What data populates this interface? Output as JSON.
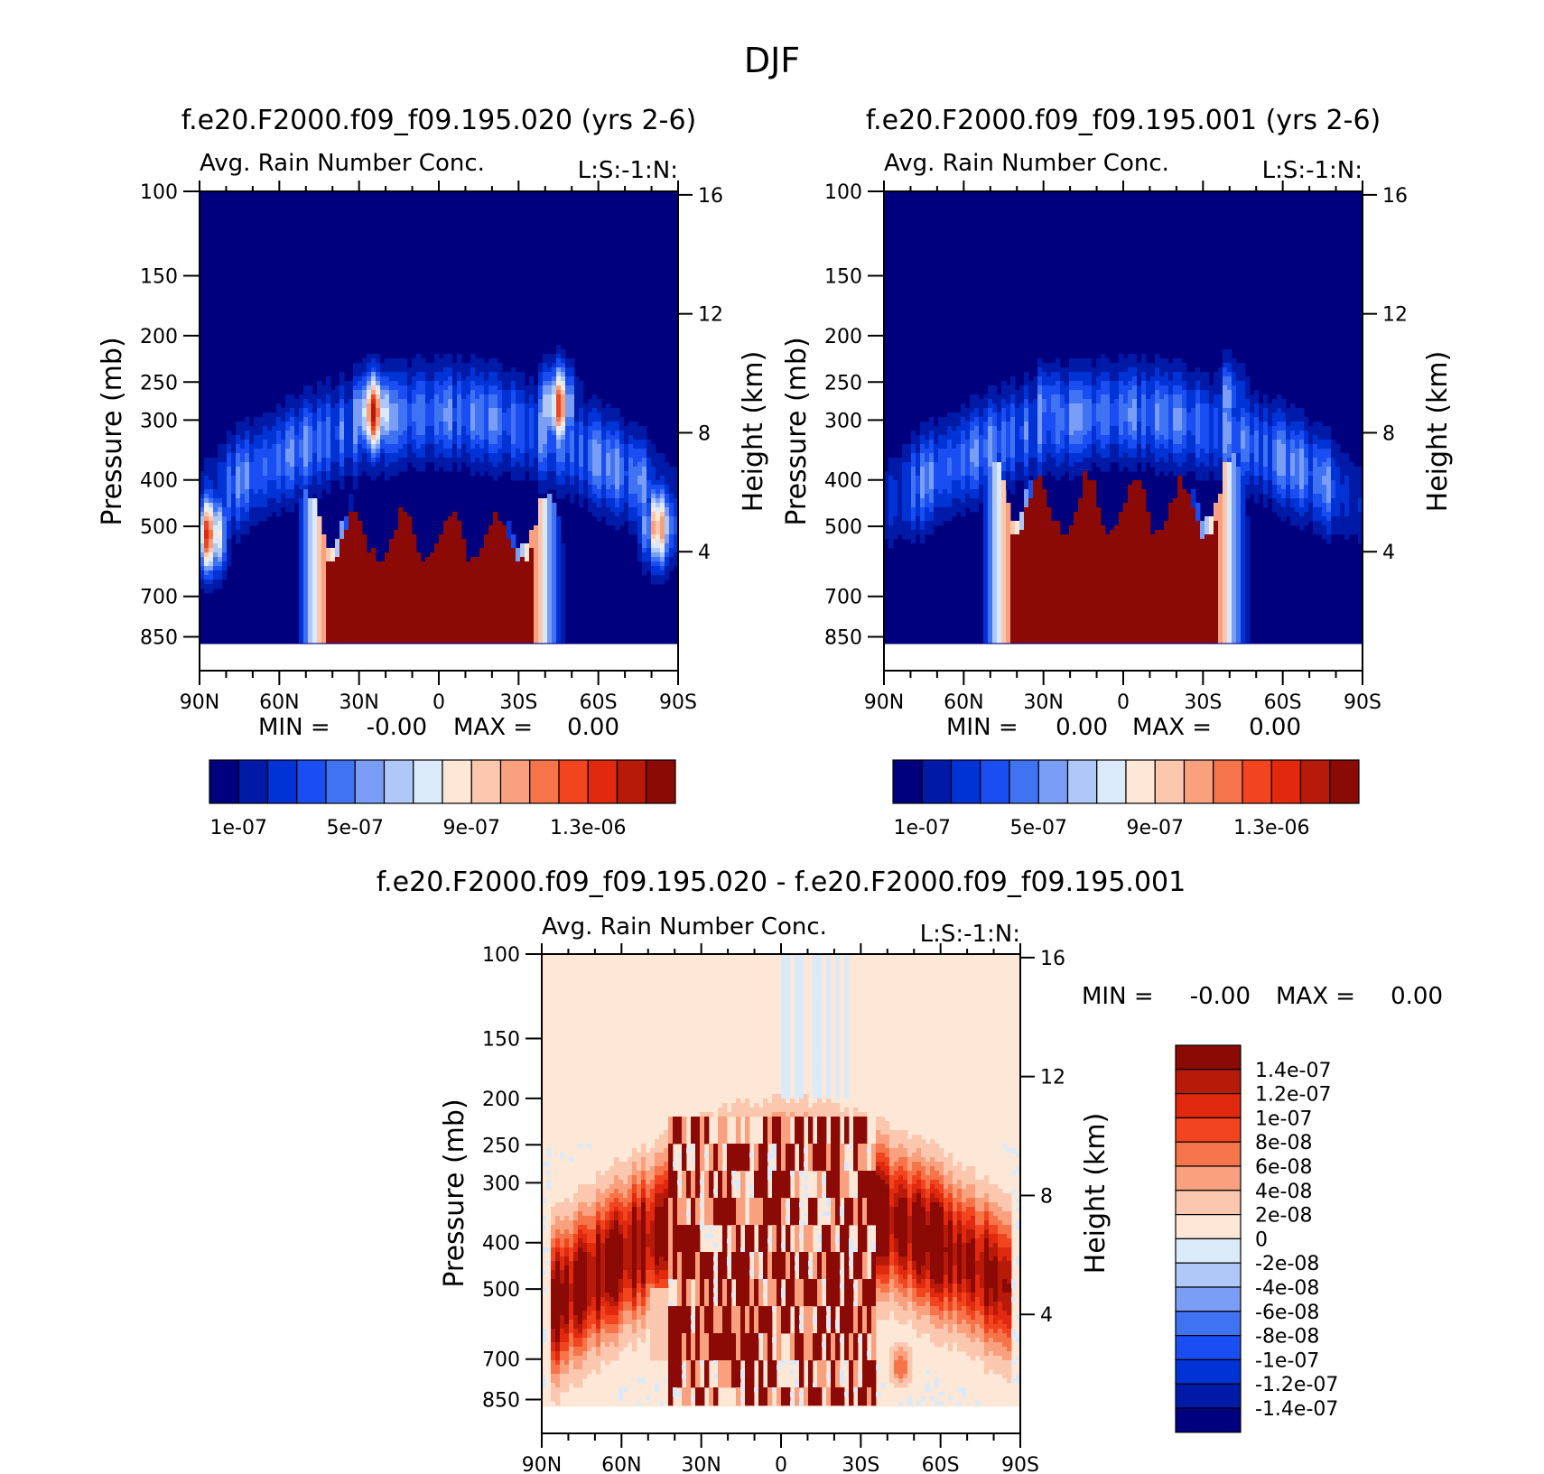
{
  "figure_title": "DJF",
  "colors": {
    "seq_palette": [
      "#00007f",
      "#001aa8",
      "#0033d6",
      "#1a4df2",
      "#4073f2",
      "#7a9ef5",
      "#b0c8f7",
      "#dbeaf8",
      "#fde8d8",
      "#fbc7ae",
      "#f9a07e",
      "#f67449",
      "#f2451f",
      "#e0290f",
      "#b81a0a",
      "#8b0a05"
    ],
    "diff_palette": [
      "#00007f",
      "#001aa8",
      "#0033d6",
      "#1a4df2",
      "#4073f2",
      "#7a9ef5",
      "#b0c8f7",
      "#dbeaf8",
      "#fde8d8",
      "#fbc7ae",
      "#f9a07e",
      "#f67449",
      "#f2451f",
      "#e0290f",
      "#b81a0a",
      "#8b0a05"
    ]
  },
  "chart_data": [
    {
      "type": "heatmap",
      "id": "panel-a",
      "title": "f.e20.F2000.f09_f09.195.020 (yrs 2-6)",
      "subtitle_left": "Avg. Rain Number Conc.",
      "subtitle_right": "L:S:-1:N:",
      "ylabel": "Pressure (mb)",
      "ylabel_right": "Height (km)",
      "y_ticks": [
        "100",
        "150",
        "200",
        "250",
        "300",
        "400",
        "500",
        "700",
        "850"
      ],
      "y_ticks_right": [
        "16",
        "12",
        "8",
        "4"
      ],
      "x_ticks": [
        "90N",
        "60N",
        "30N",
        "0",
        "30S",
        "60S",
        "90S"
      ],
      "min_label": "MIN =",
      "min_value": "-0.00",
      "max_label": "MAX =",
      "max_value": "0.00",
      "colorbar_labels": [
        "1e-07",
        "5e-07",
        "9e-07",
        "1.3e-06"
      ],
      "field": {
        "lower": {
          "lat_range": [
            43,
            -36
          ],
          "top_mb": 550,
          "peak": 1.5e-06
        },
        "upper_blobs": [
          {
            "lat": 25,
            "mb": 290,
            "amp": 1.2e-06
          },
          {
            "lat": -45,
            "mb": 280,
            "amp": 1e-06
          },
          {
            "lat": 87,
            "mb": 520,
            "amp": 1e-06
          },
          {
            "lat": -83,
            "mb": 500,
            "amp": 9e-07
          }
        ]
      }
    },
    {
      "type": "heatmap",
      "id": "panel-b",
      "title": "f.e20.F2000.f09_f09.195.001 (yrs 2-6)",
      "subtitle_left": "Avg. Rain Number Conc.",
      "subtitle_right": "L:S:-1:N:",
      "ylabel": "Pressure (mb)",
      "ylabel_right": "Height (km)",
      "y_ticks": [
        "100",
        "150",
        "200",
        "250",
        "300",
        "400",
        "500",
        "700",
        "850"
      ],
      "y_ticks_right": [
        "16",
        "12",
        "8",
        "4"
      ],
      "x_ticks": [
        "90N",
        "60N",
        "30N",
        "0",
        "30S",
        "60S",
        "90S"
      ],
      "min_label": "MIN =",
      "min_value": "0.00",
      "max_label": "MAX =",
      "max_value": "0.00",
      "colorbar_labels": [
        "1e-07",
        "5e-07",
        "9e-07",
        "1.3e-06"
      ],
      "field": {
        "lower": {
          "lat_range": [
            43,
            -36
          ],
          "top_mb": 480,
          "peak": 1.5e-06
        },
        "upper_blobs": [
          {
            "lat": 28,
            "mb": 280,
            "amp": 5e-07
          },
          {
            "lat": -40,
            "mb": 270,
            "amp": 4e-07
          }
        ]
      }
    },
    {
      "type": "heatmap",
      "id": "panel-c",
      "title": "f.e20.F2000.f09_f09.195.020 - f.e20.F2000.f09_f09.195.001",
      "subtitle_left": "Avg. Rain Number Conc.",
      "subtitle_right": "L:S:-1:N:",
      "ylabel": "Pressure (mb)",
      "ylabel_right": "Height (km)",
      "y_ticks": [
        "100",
        "150",
        "200",
        "250",
        "300",
        "400",
        "500",
        "700",
        "850"
      ],
      "y_ticks_right": [
        "16",
        "12",
        "8",
        "4"
      ],
      "x_ticks": [
        "90N",
        "60N",
        "30N",
        "0",
        "30S",
        "60S",
        "90S"
      ],
      "min_label": "MIN =",
      "min_value": "-0.00",
      "max_label": "MAX =",
      "max_value": "0.00",
      "colorbar_labels": [
        "1.4e-07",
        "1.2e-07",
        "1e-07",
        "8e-08",
        "6e-08",
        "4e-08",
        "2e-08",
        "0",
        "-2e-08",
        "-4e-08",
        "-6e-08",
        "-8e-08",
        "-1e-07",
        "-1.2e-07",
        "-1.4e-07"
      ],
      "field": {
        "positive_band": {
          "from_lat": 90,
          "to_lat": -90,
          "top_mb": 200,
          "bottom_mb": 600,
          "amp": 1.5e-07
        },
        "mixed_region": {
          "lat_range": [
            42,
            -35
          ],
          "amp": 1.5e-07
        },
        "blob": {
          "lat": -45,
          "mb": 720,
          "amp": 8e-08
        }
      }
    }
  ]
}
